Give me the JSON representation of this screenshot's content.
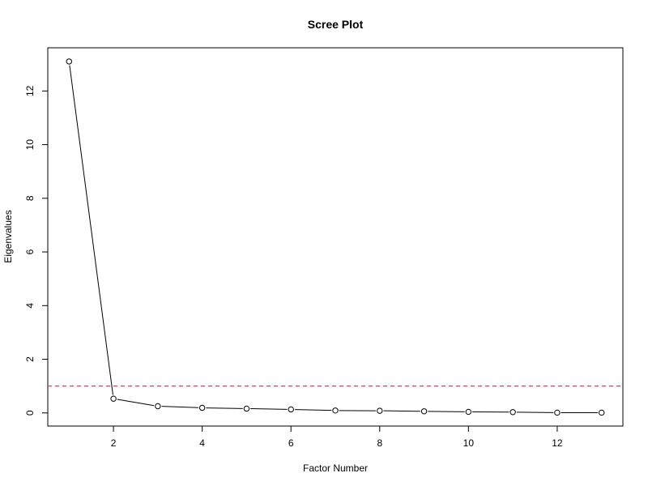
{
  "chart_data": {
    "type": "line",
    "title": "Scree Plot",
    "xlabel": "Factor Number",
    "ylabel": "Eigenvalues",
    "x": [
      1,
      2,
      3,
      4,
      5,
      6,
      7,
      8,
      9,
      10,
      11,
      12,
      13
    ],
    "series": [
      {
        "values": [
          13.1,
          0.53,
          0.25,
          0.19,
          0.16,
          0.13,
          0.09,
          0.08,
          0.06,
          0.04,
          0.03,
          0.01,
          0.01
        ],
        "color": "#000000",
        "marker": "open-circle"
      }
    ],
    "reference_line": {
      "y": 1,
      "color": "#c5466a",
      "style": "dashed"
    },
    "xticks": [
      2,
      4,
      6,
      8,
      10,
      12
    ],
    "yticks": [
      0,
      2,
      4,
      6,
      8,
      10,
      12
    ],
    "xlim": [
      0.52,
      13.48
    ],
    "ylim": [
      -0.49,
      13.61
    ],
    "grid": false,
    "legend": "none"
  }
}
